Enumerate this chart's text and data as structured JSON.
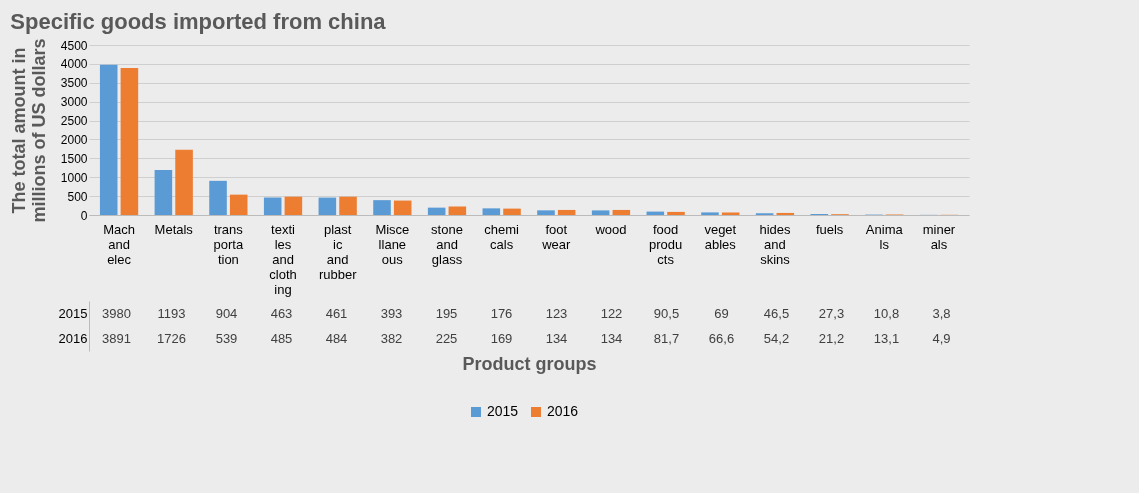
{
  "chart_data": {
    "type": "bar",
    "title": "Specific goods imported from china",
    "xlabel": "Product groups",
    "ylabel": "The total amount in millions of US dollars",
    "categories": [
      "Mach and elec",
      "Metals",
      "transportation",
      "textiles and clothing",
      "plastic and rubber",
      "Miscellaneous",
      "stone and glass",
      "chemicals",
      "foot wear",
      "wood",
      "food products",
      "vegetables",
      "hides and skins",
      "fuels",
      "Animals",
      "minerals"
    ],
    "series": [
      {
        "name": "2015",
        "color": "#5b9bd5",
        "values": [
          3980,
          1193,
          904,
          463,
          461,
          393,
          195,
          176,
          123,
          122,
          90.5,
          69,
          46.5,
          27.3,
          10.8,
          3.8
        ],
        "value_labels": [
          "3980",
          "1193",
          "904",
          "463",
          "461",
          "393",
          "195",
          "176",
          "123",
          "122",
          "90,5",
          "69",
          "46,5",
          "27,3",
          "10,8",
          "3,8"
        ]
      },
      {
        "name": "2016",
        "color": "#ed7d31",
        "values": [
          3891,
          1726,
          539,
          485,
          484,
          382,
          225,
          169,
          134,
          134,
          81.7,
          66.6,
          54.2,
          21.2,
          13.1,
          4.9
        ],
        "value_labels": [
          "3891",
          "1726",
          "539",
          "485",
          "484",
          "382",
          "225",
          "169",
          "134",
          "134",
          "81,7",
          "66,6",
          "54,2",
          "21,2",
          "13,1",
          "4,9"
        ]
      }
    ],
    "ylim": [
      0,
      4500
    ],
    "yticks": [
      0,
      500,
      1000,
      1500,
      2000,
      2500,
      3000,
      3500,
      4000,
      4500
    ],
    "grid": "y",
    "legend": "bottom"
  }
}
